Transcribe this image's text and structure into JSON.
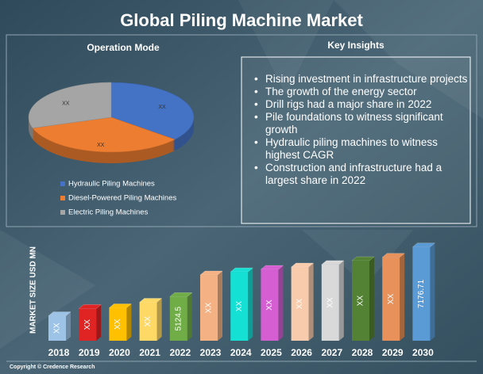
{
  "title": "Global Piling Machine Market",
  "chart_data": [
    {
      "type": "pie",
      "title": "Operation Mode",
      "categories": [
        "Hydraulic Piling Machines",
        "Diesel-Powered Piling Machines",
        "Electric Piling Machines"
      ],
      "values": [
        36,
        34,
        30
      ],
      "value_labels": [
        "XX",
        "XX",
        "XX"
      ],
      "colors": [
        "#4472c4",
        "#ed7d31",
        "#a5a5a5"
      ]
    },
    {
      "type": "bar",
      "y_label": "MARKET SIZE USD MN",
      "categories": [
        "2018",
        "2019",
        "2020",
        "2021",
        "2022",
        "2023",
        "2024",
        "2025",
        "2026",
        "2027",
        "2028",
        "2029",
        "2030"
      ],
      "values": [
        4330,
        4630,
        4660,
        4890,
        5124.5,
        6020,
        6150,
        6250,
        6350,
        6450,
        6610,
        6750,
        7176.71
      ],
      "value_labels": [
        "XX",
        "XX",
        "XX",
        "XX",
        "5124.5",
        "XX",
        "XX",
        "XX",
        "XX",
        "XX",
        "XX",
        "XX",
        "7176.71"
      ],
      "colors": [
        "#9dc3e6",
        "#e02424",
        "#ffc000",
        "#ffd966",
        "#70ad47",
        "#f4b183",
        "#14e0d4",
        "#d45ed2",
        "#f8cbad",
        "#d9d9d9",
        "#548235",
        "#e8915a",
        "#5b9bd5"
      ],
      "ylim": [
        3300,
        7300
      ]
    }
  ],
  "key_insights": {
    "title": "Key Insights",
    "items": [
      "Rising investment in infrastructure projects",
      "The growth of the energy sector",
      "Drill rigs had a major share in 2022",
      "Pile foundations to witness significant growth",
      "Hydraulic piling machines to witness highest CAGR",
      "Construction and infrastructure had a largest share in 2022"
    ]
  },
  "copyright": "Copyright © Credence Research"
}
